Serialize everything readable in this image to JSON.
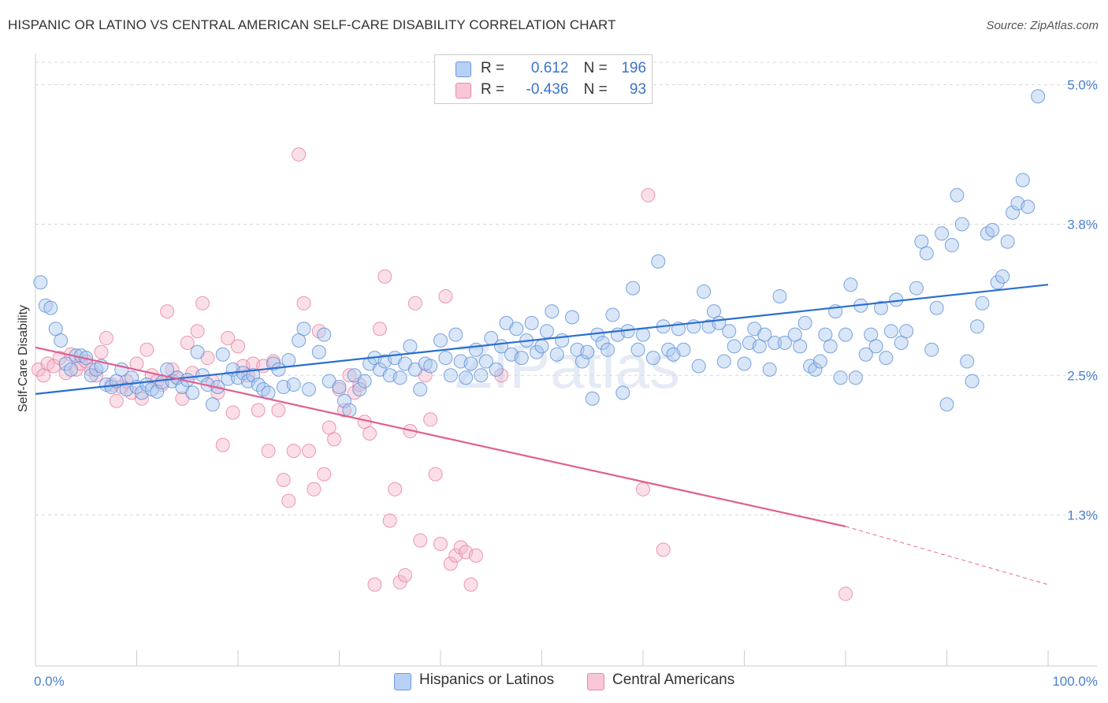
{
  "title": "HISPANIC OR LATINO VS CENTRAL AMERICAN SELF-CARE DISABILITY CORRELATION CHART",
  "source": "Source: ZipAtlas.com",
  "legend": {
    "rows": [
      {
        "r_label": "R =",
        "r_value": "0.612",
        "n_label": "N =",
        "n_value": "196"
      },
      {
        "r_label": "R =",
        "r_value": "-0.436",
        "n_label": "N =",
        "n_value": "93"
      }
    ]
  },
  "bottom_legend": [
    "Hispanics or Latinos",
    "Central Americans"
  ],
  "colors": {
    "blue_fill": "#aac8f0",
    "blue_stroke": "#5b8fd6",
    "blue_line": "#2a6fcf",
    "pink_fill": "#f5b8cb",
    "pink_stroke": "#e87fa0",
    "pink_line": "#e06090",
    "grid": "#d8d8d8",
    "tick_text": "#4a7fd1"
  },
  "chart_data": {
    "type": "scatter",
    "title": "HISPANIC OR LATINO VS CENTRAL AMERICAN SELF-CARE DISABILITY CORRELATION CHART",
    "xlabel": "",
    "ylabel": "Self-Care Disability",
    "xlim": [
      0,
      100
    ],
    "ylim": [
      0,
      5.2
    ],
    "x_tick_labels": [
      "0.0%",
      "100.0%"
    ],
    "y_ticks": [
      1.3,
      2.5,
      3.8,
      5.0
    ],
    "y_tick_labels": [
      "1.3%",
      "2.5%",
      "3.8%",
      "5.0%"
    ],
    "watermark": "ZIPatlas",
    "grid": "horizontal dashed",
    "series": [
      {
        "name": "Hispanics or Latinos",
        "r": 0.612,
        "n": 196,
        "trend": {
          "x": [
            0,
            100
          ],
          "y": [
            2.34,
            3.28
          ]
        },
        "points": [
          [
            0.5,
            3.3
          ],
          [
            1,
            3.1
          ],
          [
            1.5,
            3.08
          ],
          [
            2,
            2.9
          ],
          [
            2.5,
            2.8
          ],
          [
            3,
            2.6
          ],
          [
            3.5,
            2.55
          ],
          [
            4,
            2.67
          ],
          [
            4.5,
            2.67
          ],
          [
            5,
            2.65
          ],
          [
            5.5,
            2.5
          ],
          [
            6,
            2.55
          ],
          [
            6.5,
            2.58
          ],
          [
            7,
            2.42
          ],
          [
            7.5,
            2.4
          ],
          [
            8,
            2.45
          ],
          [
            8.5,
            2.55
          ],
          [
            9,
            2.38
          ],
          [
            9.5,
            2.48
          ],
          [
            10,
            2.4
          ],
          [
            10.5,
            2.35
          ],
          [
            11,
            2.42
          ],
          [
            11.5,
            2.38
          ],
          [
            12,
            2.36
          ],
          [
            12.5,
            2.44
          ],
          [
            13,
            2.55
          ],
          [
            13.5,
            2.45
          ],
          [
            14,
            2.48
          ],
          [
            14.5,
            2.4
          ],
          [
            15,
            2.46
          ],
          [
            15.5,
            2.35
          ],
          [
            16,
            2.7
          ],
          [
            16.5,
            2.5
          ],
          [
            17,
            2.42
          ],
          [
            17.5,
            2.25
          ],
          [
            18,
            2.4
          ],
          [
            18.5,
            2.68
          ],
          [
            19,
            2.47
          ],
          [
            19.5,
            2.55
          ],
          [
            20,
            2.48
          ],
          [
            20.5,
            2.52
          ],
          [
            21,
            2.45
          ],
          [
            21.5,
            2.5
          ],
          [
            22,
            2.42
          ],
          [
            22.5,
            2.38
          ],
          [
            23,
            2.35
          ],
          [
            23.5,
            2.6
          ],
          [
            24,
            2.55
          ],
          [
            24.5,
            2.4
          ],
          [
            25,
            2.63
          ],
          [
            25.5,
            2.42
          ],
          [
            26,
            2.8
          ],
          [
            26.5,
            2.9
          ],
          [
            27,
            2.38
          ],
          [
            28,
            2.7
          ],
          [
            28.5,
            2.85
          ],
          [
            29,
            2.45
          ],
          [
            30,
            2.4
          ],
          [
            30.5,
            2.28
          ],
          [
            31,
            2.2
          ],
          [
            31.5,
            2.5
          ],
          [
            32,
            2.38
          ],
          [
            32.5,
            2.45
          ],
          [
            33,
            2.6
          ],
          [
            33.5,
            2.65
          ],
          [
            34,
            2.55
          ],
          [
            34.5,
            2.62
          ],
          [
            35,
            2.5
          ],
          [
            35.5,
            2.65
          ],
          [
            36,
            2.48
          ],
          [
            36.5,
            2.6
          ],
          [
            37,
            2.75
          ],
          [
            37.5,
            2.55
          ],
          [
            38,
            2.38
          ],
          [
            38.5,
            2.6
          ],
          [
            39,
            2.58
          ],
          [
            40,
            2.8
          ],
          [
            40.5,
            2.65
          ],
          [
            41,
            2.5
          ],
          [
            41.5,
            2.85
          ],
          [
            42,
            2.62
          ],
          [
            42.5,
            2.48
          ],
          [
            43,
            2.6
          ],
          [
            43.5,
            2.72
          ],
          [
            44,
            2.5
          ],
          [
            44.5,
            2.62
          ],
          [
            45,
            2.82
          ],
          [
            45.5,
            2.55
          ],
          [
            46,
            2.75
          ],
          [
            46.5,
            2.95
          ],
          [
            47,
            2.68
          ],
          [
            47.5,
            2.9
          ],
          [
            48,
            2.65
          ],
          [
            48.5,
            2.8
          ],
          [
            49,
            2.95
          ],
          [
            49.5,
            2.7
          ],
          [
            50,
            2.75
          ],
          [
            50.5,
            2.88
          ],
          [
            51,
            3.05
          ],
          [
            51.5,
            2.68
          ],
          [
            52,
            2.8
          ],
          [
            53,
            3.0
          ],
          [
            53.5,
            2.72
          ],
          [
            54,
            2.62
          ],
          [
            54.5,
            2.7
          ],
          [
            55,
            2.3
          ],
          [
            55.5,
            2.85
          ],
          [
            56,
            2.78
          ],
          [
            56.5,
            2.72
          ],
          [
            57,
            3.02
          ],
          [
            57.5,
            2.85
          ],
          [
            58,
            2.35
          ],
          [
            58.5,
            2.88
          ],
          [
            59,
            3.25
          ],
          [
            59.5,
            2.72
          ],
          [
            60,
            2.85
          ],
          [
            61,
            2.65
          ],
          [
            61.5,
            3.48
          ],
          [
            62,
            2.92
          ],
          [
            62.5,
            2.72
          ],
          [
            63,
            2.68
          ],
          [
            63.5,
            2.9
          ],
          [
            64,
            2.72
          ],
          [
            65,
            2.92
          ],
          [
            65.5,
            2.58
          ],
          [
            66,
            3.22
          ],
          [
            66.5,
            2.92
          ],
          [
            67,
            3.05
          ],
          [
            67.5,
            2.95
          ],
          [
            68,
            2.62
          ],
          [
            68.5,
            2.88
          ],
          [
            69,
            2.75
          ],
          [
            70,
            2.6
          ],
          [
            70.5,
            2.78
          ],
          [
            71,
            2.9
          ],
          [
            71.5,
            2.75
          ],
          [
            72,
            2.85
          ],
          [
            72.5,
            2.55
          ],
          [
            73,
            2.78
          ],
          [
            73.5,
            3.18
          ],
          [
            74,
            2.78
          ],
          [
            75,
            2.85
          ],
          [
            75.5,
            2.75
          ],
          [
            76,
            2.95
          ],
          [
            76.5,
            2.58
          ],
          [
            77,
            2.55
          ],
          [
            77.5,
            2.62
          ],
          [
            78,
            2.85
          ],
          [
            78.5,
            2.75
          ],
          [
            79,
            3.05
          ],
          [
            79.5,
            2.48
          ],
          [
            80,
            2.85
          ],
          [
            80.5,
            3.28
          ],
          [
            81,
            2.48
          ],
          [
            81.5,
            3.1
          ],
          [
            82,
            2.68
          ],
          [
            82.5,
            2.85
          ],
          [
            83,
            2.75
          ],
          [
            83.5,
            3.08
          ],
          [
            84,
            2.65
          ],
          [
            84.5,
            2.88
          ],
          [
            85,
            3.15
          ],
          [
            85.5,
            2.78
          ],
          [
            86,
            2.88
          ],
          [
            87,
            3.25
          ],
          [
            87.5,
            3.65
          ],
          [
            88,
            3.55
          ],
          [
            88.5,
            2.72
          ],
          [
            89,
            3.08
          ],
          [
            89.5,
            3.72
          ],
          [
            90,
            2.25
          ],
          [
            90.5,
            3.62
          ],
          [
            91,
            4.05
          ],
          [
            91.5,
            3.8
          ],
          [
            92,
            2.62
          ],
          [
            92.5,
            2.45
          ],
          [
            93,
            2.92
          ],
          [
            93.5,
            3.12
          ],
          [
            94,
            3.72
          ],
          [
            94.5,
            3.75
          ],
          [
            95,
            3.3
          ],
          [
            95.5,
            3.35
          ],
          [
            96,
            3.65
          ],
          [
            96.5,
            3.9
          ],
          [
            97,
            3.98
          ],
          [
            97.5,
            4.18
          ],
          [
            98,
            3.95
          ],
          [
            99,
            4.9
          ]
        ]
      },
      {
        "name": "Central Americans",
        "r": -0.436,
        "n": 93,
        "trend": {
          "x": [
            0,
            80
          ],
          "y": [
            2.74,
            1.2
          ]
        },
        "trend_extension": {
          "x": [
            80,
            100
          ],
          "y": [
            1.2,
            0.7
          ]
        },
        "points": [
          [
            0.3,
            2.55
          ],
          [
            0.8,
            2.5
          ],
          [
            1.2,
            2.6
          ],
          [
            1.8,
            2.58
          ],
          [
            2.4,
            2.65
          ],
          [
            3,
            2.52
          ],
          [
            3.5,
            2.68
          ],
          [
            4,
            2.55
          ],
          [
            4.5,
            2.6
          ],
          [
            5,
            2.62
          ],
          [
            5.5,
            2.55
          ],
          [
            6,
            2.5
          ],
          [
            6.5,
            2.7
          ],
          [
            7,
            2.82
          ],
          [
            7.5,
            2.42
          ],
          [
            8,
            2.28
          ],
          [
            8.5,
            2.4
          ],
          [
            9,
            2.45
          ],
          [
            9.5,
            2.35
          ],
          [
            10,
            2.6
          ],
          [
            10.5,
            2.3
          ],
          [
            11,
            2.72
          ],
          [
            11.5,
            2.5
          ],
          [
            12,
            2.45
          ],
          [
            12.5,
            2.42
          ],
          [
            13,
            3.05
          ],
          [
            13.5,
            2.55
          ],
          [
            14,
            2.48
          ],
          [
            14.5,
            2.3
          ],
          [
            15,
            2.78
          ],
          [
            15.5,
            2.52
          ],
          [
            16,
            2.88
          ],
          [
            16.5,
            3.12
          ],
          [
            17,
            2.65
          ],
          [
            17.5,
            2.45
          ],
          [
            18,
            2.35
          ],
          [
            18.5,
            1.9
          ],
          [
            19,
            2.82
          ],
          [
            19.5,
            2.18
          ],
          [
            20,
            2.75
          ],
          [
            20.5,
            2.58
          ],
          [
            21,
            2.5
          ],
          [
            21.5,
            2.6
          ],
          [
            22,
            2.2
          ],
          [
            22.5,
            2.58
          ],
          [
            23,
            1.85
          ],
          [
            23.5,
            2.62
          ],
          [
            24,
            2.2
          ],
          [
            24.5,
            1.6
          ],
          [
            25,
            1.42
          ],
          [
            25.5,
            1.85
          ],
          [
            26,
            4.4
          ],
          [
            26.5,
            3.12
          ],
          [
            27,
            1.85
          ],
          [
            27.5,
            1.52
          ],
          [
            28,
            2.88
          ],
          [
            28.5,
            1.65
          ],
          [
            29,
            2.05
          ],
          [
            29.5,
            1.95
          ],
          [
            30,
            2.38
          ],
          [
            30.5,
            2.2
          ],
          [
            31,
            2.5
          ],
          [
            31.5,
            2.35
          ],
          [
            32,
            2.42
          ],
          [
            32.5,
            2.1
          ],
          [
            33,
            2.0
          ],
          [
            33.5,
            0.7
          ],
          [
            34,
            2.9
          ],
          [
            34.5,
            3.35
          ],
          [
            35,
            1.25
          ],
          [
            35.5,
            1.52
          ],
          [
            36,
            0.72
          ],
          [
            36.5,
            0.78
          ],
          [
            37,
            2.02
          ],
          [
            37.5,
            3.12
          ],
          [
            38,
            1.08
          ],
          [
            38.5,
            2.5
          ],
          [
            39,
            2.12
          ],
          [
            39.5,
            1.65
          ],
          [
            40,
            1.05
          ],
          [
            40.5,
            3.18
          ],
          [
            41,
            0.88
          ],
          [
            41.5,
            0.95
          ],
          [
            42,
            1.02
          ],
          [
            42.5,
            0.98
          ],
          [
            43,
            0.7
          ],
          [
            43.5,
            0.95
          ],
          [
            46,
            2.5
          ],
          [
            60,
            1.52
          ],
          [
            60.5,
            4.05
          ],
          [
            62,
            1.0
          ],
          [
            80,
            0.62
          ]
        ]
      }
    ]
  }
}
